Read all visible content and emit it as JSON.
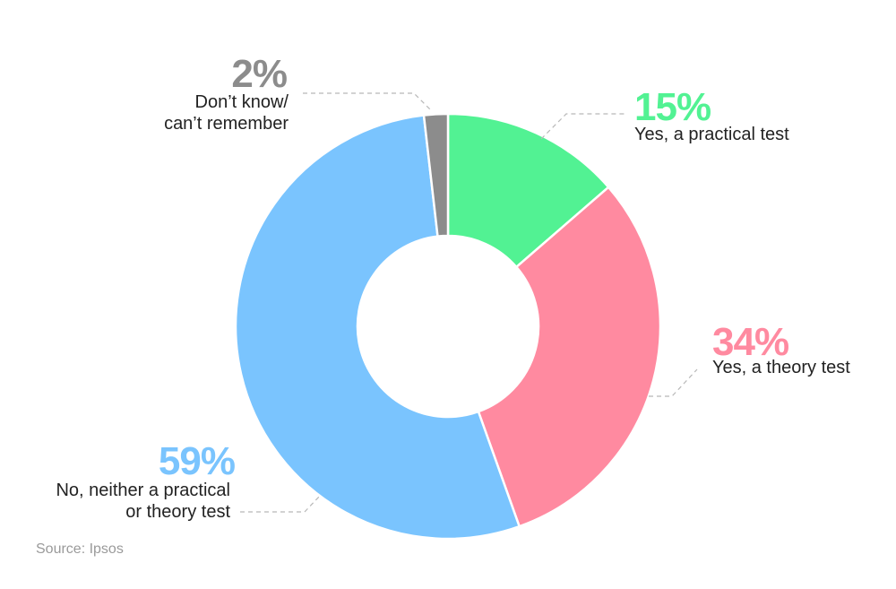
{
  "chart_data": {
    "type": "pie",
    "donut": true,
    "slices": [
      {
        "value": 15,
        "label": "15%",
        "lines": [
          "Yes, a practical test"
        ],
        "color": "#52f293"
      },
      {
        "value": 34,
        "label": "34%",
        "lines": [
          "Yes, a theory test"
        ],
        "color": "#ff8aa0"
      },
      {
        "value": 59,
        "label": "59%",
        "lines": [
          "No, neither a practical",
          "or theory test"
        ],
        "color": "#7ac4fe"
      },
      {
        "value": 2,
        "label": "2%",
        "lines": [
          "Don’t know/",
          "can’t remember"
        ],
        "color": "#8c8c8c"
      }
    ],
    "source": "Source: Ipsos"
  }
}
